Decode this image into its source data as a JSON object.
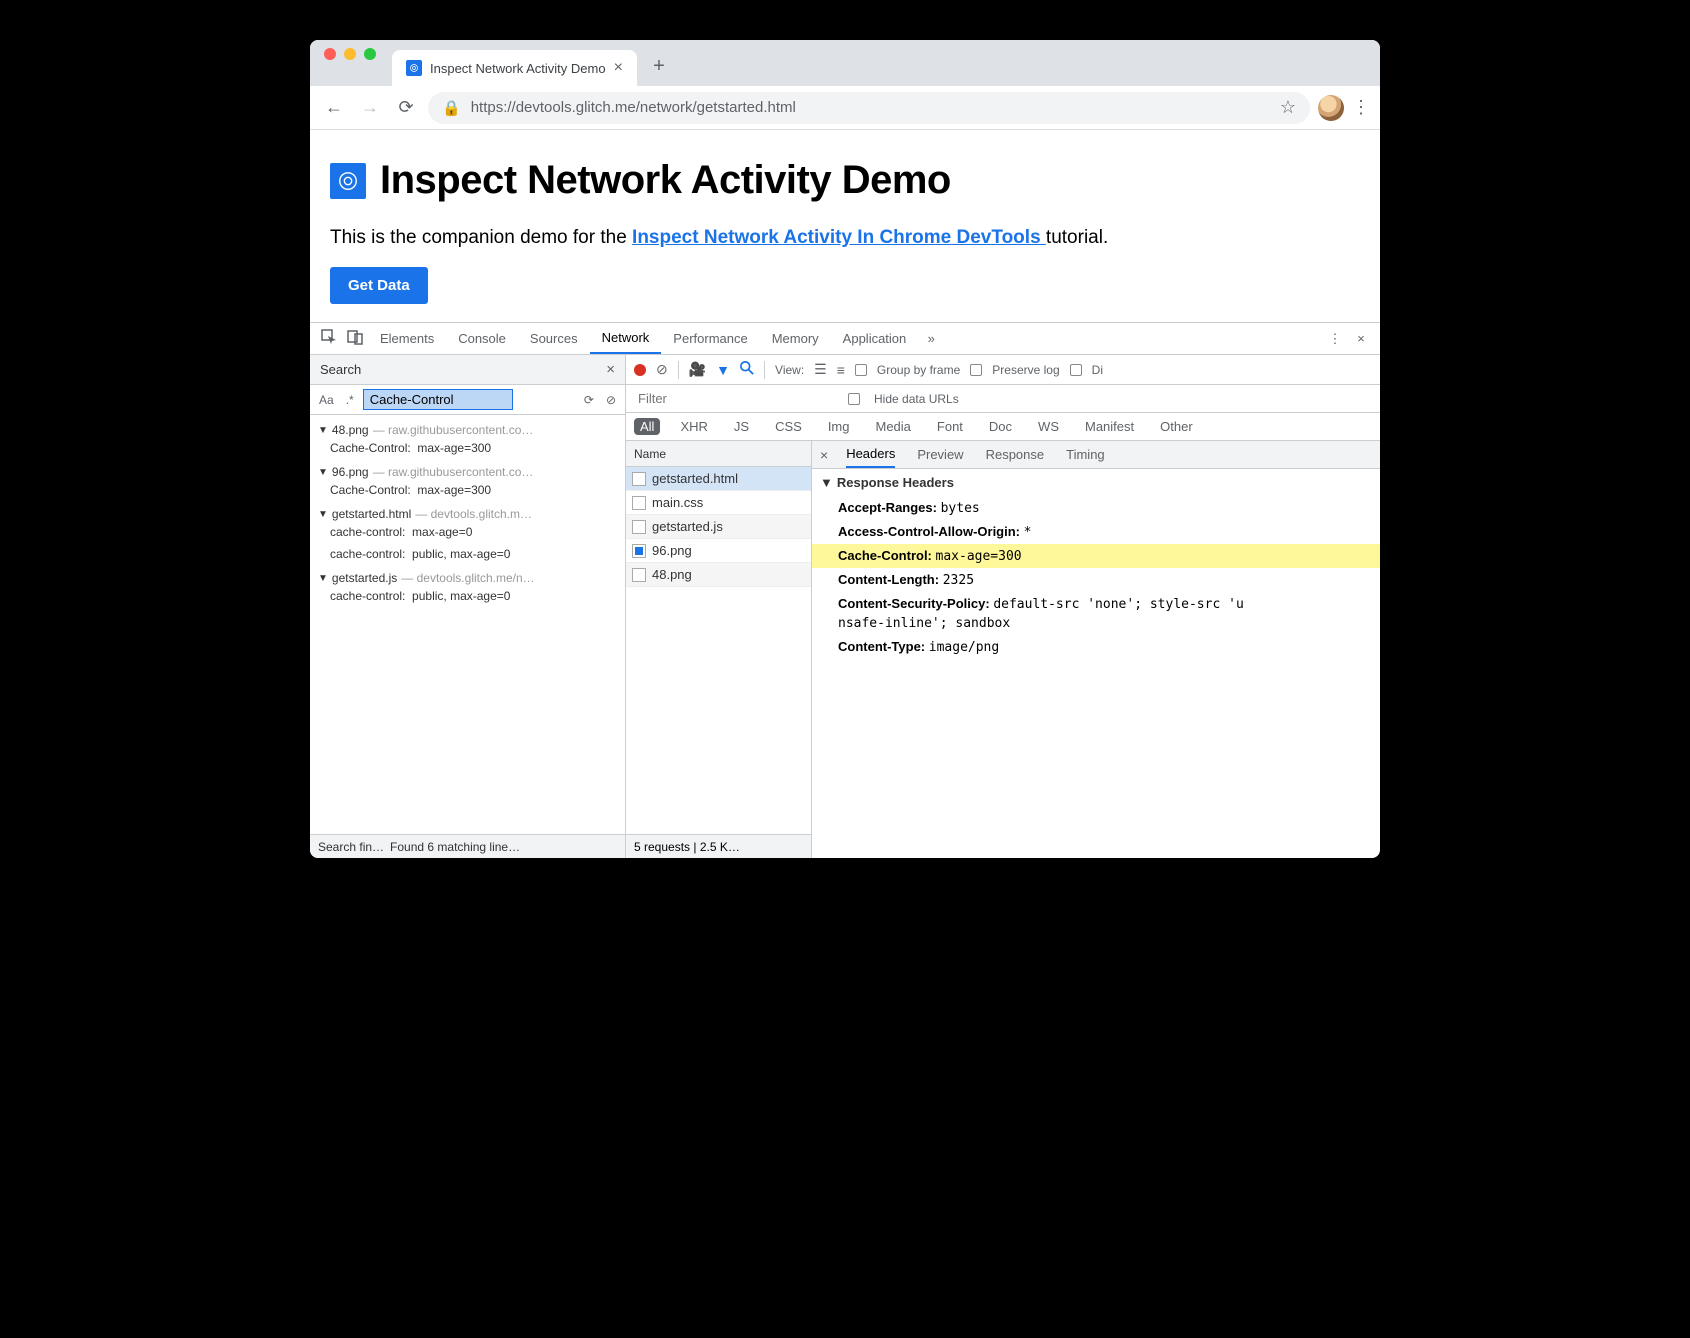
{
  "browser": {
    "tab_title": "Inspect Network Activity Demo",
    "url": "https://devtools.glitch.me/network/getstarted.html"
  },
  "page": {
    "heading": "Inspect Network Activity Demo",
    "intro_prefix": "This is the companion demo for the ",
    "link_text": "Inspect Network Activity In Chrome DevTools ",
    "intro_suffix": "tutorial.",
    "button_label": "Get Data"
  },
  "devtools": {
    "tabs": [
      "Elements",
      "Console",
      "Sources",
      "Network",
      "Performance",
      "Memory",
      "Application"
    ],
    "active_tab": "Network",
    "search": {
      "title": "Search",
      "query": "Cache-Control",
      "results": [
        {
          "file": "48.png",
          "source": "— raw.githubusercontent.co…",
          "matches": [
            {
              "key": "Cache-Control:",
              "val": "max-age=300"
            }
          ]
        },
        {
          "file": "96.png",
          "source": "— raw.githubusercontent.co…",
          "matches": [
            {
              "key": "Cache-Control:",
              "val": "max-age=300"
            }
          ]
        },
        {
          "file": "getstarted.html",
          "source": "— devtools.glitch.m…",
          "matches": [
            {
              "key": "cache-control:",
              "val": "max-age=0"
            },
            {
              "key": "cache-control:",
              "val": "public, max-age=0"
            }
          ]
        },
        {
          "file": "getstarted.js",
          "source": "— devtools.glitch.me/n…",
          "matches": [
            {
              "key": "cache-control:",
              "val": "public, max-age=0"
            }
          ]
        }
      ],
      "footer_left": "Search fin…",
      "footer_right": "Found 6 matching line…"
    },
    "network": {
      "toolbar": {
        "view_label": "View:",
        "group_label": "Group by frame",
        "preserve_label": "Preserve log",
        "disable_label": "Di"
      },
      "filter_placeholder": "Filter",
      "hide_urls_label": "Hide data URLs",
      "types": [
        "All",
        "XHR",
        "JS",
        "CSS",
        "Img",
        "Media",
        "Font",
        "Doc",
        "WS",
        "Manifest",
        "Other"
      ],
      "name_col": "Name",
      "requests": [
        {
          "name": "getstarted.html",
          "icon": "doc",
          "selected": true
        },
        {
          "name": "main.css",
          "icon": "doc"
        },
        {
          "name": "getstarted.js",
          "icon": "doc",
          "alt": true
        },
        {
          "name": "96.png",
          "icon": "img"
        },
        {
          "name": "48.png",
          "icon": "doc",
          "alt": true
        }
      ],
      "list_footer": "5 requests | 2.5 K…",
      "detail": {
        "tabs": [
          "Headers",
          "Preview",
          "Response",
          "Timing"
        ],
        "section": "Response Headers",
        "headers": [
          {
            "k": "Accept-Ranges:",
            "v": "bytes"
          },
          {
            "k": "Access-Control-Allow-Origin:",
            "v": "*"
          },
          {
            "k": "Cache-Control:",
            "v": "max-age=300",
            "hl": true
          },
          {
            "k": "Content-Length:",
            "v": "2325"
          },
          {
            "k": "Content-Security-Policy:",
            "v": "default-src 'none'; style-src 'u"
          },
          {
            "cont": "nsafe-inline'; sandbox"
          },
          {
            "k": "Content-Type:",
            "v": "image/png"
          }
        ]
      }
    }
  }
}
